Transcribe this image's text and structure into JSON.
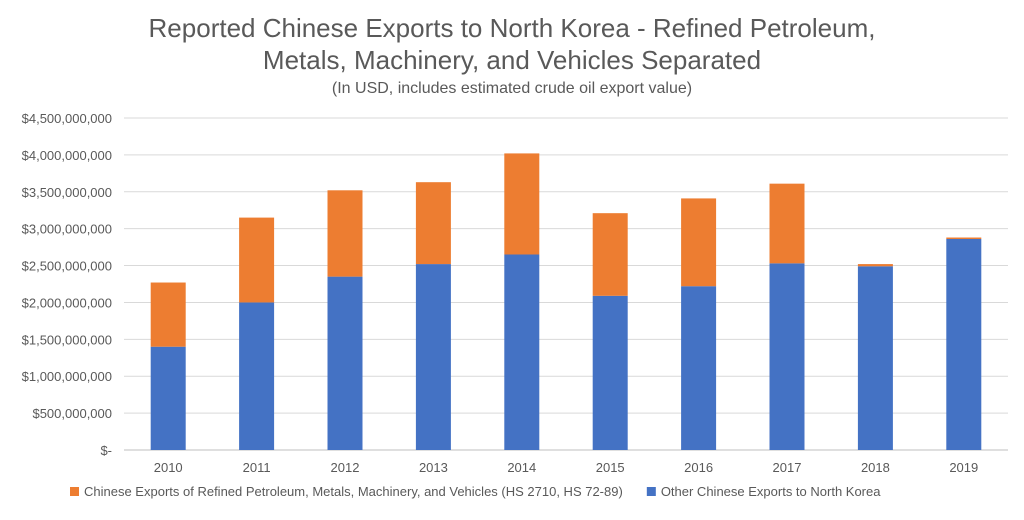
{
  "chart_data": {
    "type": "bar",
    "stacked": true,
    "title_lines": [
      "Reported Chinese Exports to North Korea - Refined Petroleum,",
      "Metals, Machinery, and Vehicles Separated"
    ],
    "subtitle": "(In USD, includes estimated crude oil export value)",
    "categories": [
      "2010",
      "2011",
      "2012",
      "2013",
      "2014",
      "2015",
      "2016",
      "2017",
      "2018",
      "2019"
    ],
    "series": [
      {
        "name": "Other Chinese Exports to North Korea",
        "color": "#4472C4",
        "values": [
          1400000000,
          2000000000,
          2350000000,
          2520000000,
          2650000000,
          2090000000,
          2220000000,
          2530000000,
          2490000000,
          2860000000
        ]
      },
      {
        "name": "Chinese Exports of Refined Petroleum, Metals, Machinery, and Vehicles (HS 2710, HS 72-89)",
        "color": "#ED7D31",
        "values": [
          870000000,
          1150000000,
          1170000000,
          1110000000,
          1370000000,
          1120000000,
          1190000000,
          1080000000,
          30000000,
          20000000
        ]
      }
    ],
    "y_ticks": [
      "$-",
      "$500,000,000",
      "$1,000,000,000",
      "$1,500,000,000",
      "$2,000,000,000",
      "$2,500,000,000",
      "$3,000,000,000",
      "$3,500,000,000",
      "$4,000,000,000",
      "$4,500,000,000"
    ],
    "ylim": [
      0,
      4500000000
    ],
    "grid": true,
    "legend_position": "bottom",
    "legend_order": [
      1,
      0
    ],
    "xlabel": "",
    "ylabel": ""
  }
}
